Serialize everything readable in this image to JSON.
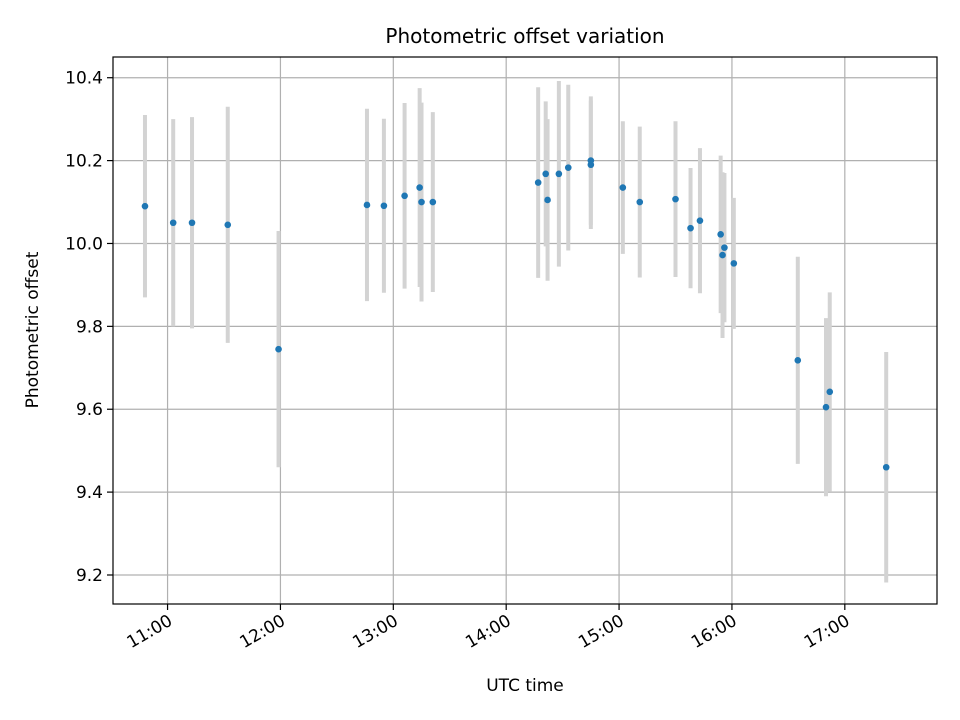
{
  "chart_data": {
    "type": "scatter",
    "title": "Photometric offset variation",
    "xlabel": "UTC time",
    "ylabel": "Photometric offset",
    "xlim": [
      "10:31",
      "17:49"
    ],
    "ylim": [
      9.13,
      10.45
    ],
    "x_ticks": [
      "11:00",
      "12:00",
      "13:00",
      "14:00",
      "15:00",
      "16:00",
      "17:00"
    ],
    "y_ticks": [
      "9.2",
      "9.4",
      "9.6",
      "9.8",
      "10.0",
      "10.2",
      "10.4"
    ],
    "grid": true,
    "legend": "none",
    "colors": {
      "point": "#1f77b4",
      "errorbar": "#d3d3d3",
      "grid": "#b0b0b0"
    },
    "points": [
      {
        "x": "10:48",
        "y": 10.09,
        "yerr": 0.22
      },
      {
        "x": "11:03",
        "y": 10.05,
        "yerr": 0.25
      },
      {
        "x": "11:13",
        "y": 10.05,
        "yerr": 0.255
      },
      {
        "x": "11:32",
        "y": 10.045,
        "yerr": 0.285
      },
      {
        "x": "11:59",
        "y": 9.745,
        "yerr": 0.285
      },
      {
        "x": "12:46",
        "y": 10.093,
        "yerr": 0.232
      },
      {
        "x": "12:55",
        "y": 10.091,
        "yerr": 0.21
      },
      {
        "x": "13:06",
        "y": 10.115,
        "yerr": 0.224
      },
      {
        "x": "13:14",
        "y": 10.135,
        "yerr": 0.24
      },
      {
        "x": "13:15",
        "y": 10.1,
        "yerr": 0.24
      },
      {
        "x": "13:21",
        "y": 10.1,
        "yerr": 0.217
      },
      {
        "x": "14:17",
        "y": 10.147,
        "yerr": 0.23
      },
      {
        "x": "14:21",
        "y": 10.168,
        "yerr": 0.175
      },
      {
        "x": "14:22",
        "y": 10.105,
        "yerr": 0.195
      },
      {
        "x": "14:28",
        "y": 10.168,
        "yerr": 0.224
      },
      {
        "x": "14:33",
        "y": 10.183,
        "yerr": 0.2
      },
      {
        "x": "14:45",
        "y": 10.2,
        "yerr": 0.155
      },
      {
        "x": "14:45",
        "y": 10.19,
        "yerr": 0.155
      },
      {
        "x": "15:02",
        "y": 10.135,
        "yerr": 0.16
      },
      {
        "x": "15:11",
        "y": 10.1,
        "yerr": 0.182
      },
      {
        "x": "15:30",
        "y": 10.107,
        "yerr": 0.188
      },
      {
        "x": "15:38",
        "y": 10.037,
        "yerr": 0.145
      },
      {
        "x": "15:43",
        "y": 10.055,
        "yerr": 0.175
      },
      {
        "x": "15:54",
        "y": 10.022,
        "yerr": 0.19
      },
      {
        "x": "15:56",
        "y": 9.99,
        "yerr": 0.18
      },
      {
        "x": "15:55",
        "y": 9.972,
        "yerr": 0.2
      },
      {
        "x": "16:01",
        "y": 9.952,
        "yerr": 0.158
      },
      {
        "x": "16:35",
        "y": 9.718,
        "yerr": 0.25
      },
      {
        "x": "16:50",
        "y": 9.605,
        "yerr": 0.215
      },
      {
        "x": "16:52",
        "y": 9.642,
        "yerr": 0.24
      },
      {
        "x": "17:22",
        "y": 9.46,
        "yerr": 0.278
      }
    ]
  }
}
